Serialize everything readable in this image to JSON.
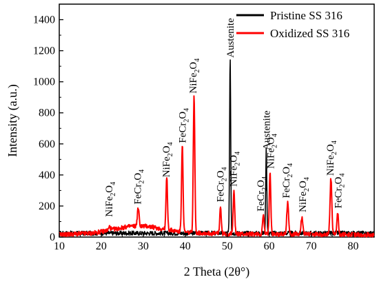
{
  "chart_data": {
    "type": "line",
    "xlabel": "2 Theta (2θ°)",
    "ylabel": "Intensity (a.u.)",
    "xlim": [
      10,
      85
    ],
    "ylim": [
      0,
      1500
    ],
    "x_ticks": [
      "10",
      "20",
      "30",
      "40",
      "50",
      "60",
      "70",
      "80"
    ],
    "y_ticks": [
      "0",
      "200",
      "400",
      "600",
      "800",
      "1000",
      "1200",
      "1400"
    ],
    "grid": false,
    "legend_position": "top-right",
    "series": [
      {
        "name": "Pristine SS 316",
        "color": "#000000",
        "baseline": 25,
        "peaks": [
          {
            "x": 50.7,
            "y": 1140,
            "w": 0.22
          },
          {
            "x": 59.3,
            "y": 545,
            "w": 0.22
          }
        ]
      },
      {
        "name": "Oxidized SS 316",
        "color": "#ff0000",
        "baseline": 15,
        "hump": [
          [
            10,
            15
          ],
          [
            18,
            25
          ],
          [
            24,
            55
          ],
          [
            27,
            70
          ],
          [
            31,
            70
          ],
          [
            34,
            55
          ],
          [
            40,
            30
          ],
          [
            50,
            20
          ],
          [
            85,
            15
          ]
        ],
        "peaks": [
          {
            "x": 22.0,
            "y": 22,
            "w": 0.35
          },
          {
            "x": 28.8,
            "y": 115,
            "w": 0.35
          },
          {
            "x": 35.6,
            "y": 335,
            "w": 0.3
          },
          {
            "x": 39.3,
            "y": 565,
            "w": 0.3
          },
          {
            "x": 42.1,
            "y": 885,
            "w": 0.3
          },
          {
            "x": 48.4,
            "y": 175,
            "w": 0.3
          },
          {
            "x": 51.6,
            "y": 290,
            "w": 0.3
          },
          {
            "x": 58.6,
            "y": 125,
            "w": 0.3
          },
          {
            "x": 60.2,
            "y": 410,
            "w": 0.3
          },
          {
            "x": 64.4,
            "y": 210,
            "w": 0.35
          },
          {
            "x": 67.8,
            "y": 110,
            "w": 0.4
          },
          {
            "x": 74.7,
            "y": 360,
            "w": 0.35
          },
          {
            "x": 76.3,
            "y": 140,
            "w": 0.3
          }
        ]
      }
    ],
    "annotations": [
      {
        "base": "NiFe",
        "sub": "2",
        "tail": "O",
        "sub2": "4",
        "x": 21.8,
        "y": 130,
        "rotate": -90
      },
      {
        "base": "FeCr",
        "sub": "2",
        "tail": "O",
        "sub2": "4",
        "x": 28.6,
        "y": 210,
        "rotate": -90
      },
      {
        "base": "NiFe",
        "sub": "2",
        "tail": "O",
        "sub2": "4",
        "x": 35.4,
        "y": 385,
        "rotate": -90
      },
      {
        "base": "FeCr",
        "sub": "2",
        "tail": "O",
        "sub2": "4",
        "x": 39.3,
        "y": 605,
        "rotate": -90
      },
      {
        "base": "NiFe",
        "sub": "2",
        "tail": "O",
        "sub2": "4",
        "x": 41.8,
        "y": 925,
        "rotate": -90
      },
      {
        "base": "FeCr",
        "sub": "2",
        "tail": "O",
        "sub2": "4",
        "x": 48.3,
        "y": 225,
        "rotate": -90
      },
      {
        "base": "Austenite",
        "sub": "",
        "tail": "",
        "sub2": "",
        "x": 50.7,
        "y": 1155,
        "rotate": -90
      },
      {
        "base": "NiFe",
        "sub": "2",
        "tail": "O",
        "sub2": "4",
        "x": 51.4,
        "y": 325,
        "rotate": -90
      },
      {
        "base": "FeCr",
        "sub": "2",
        "tail": "O",
        "sub2": "4",
        "x": 57.9,
        "y": 165,
        "rotate": -90
      },
      {
        "base": "Austenite",
        "sub": "",
        "tail": "",
        "sub2": "",
        "x": 59.3,
        "y": 560,
        "rotate": -90
      },
      {
        "base": "NiFe",
        "sub": "2",
        "tail": "O",
        "sub2": "4",
        "x": 60.3,
        "y": 440,
        "rotate": -90
      },
      {
        "base": "FeCr",
        "sub": "2",
        "tail": "O",
        "sub2": "4",
        "x": 64.0,
        "y": 250,
        "rotate": -90
      },
      {
        "base": "NiFe",
        "sub": "2",
        "tail": "O",
        "sub2": "4",
        "x": 67.9,
        "y": 160,
        "rotate": -90
      },
      {
        "base": "NiFe",
        "sub": "2",
        "tail": "O",
        "sub2": "4",
        "x": 74.5,
        "y": 395,
        "rotate": -90
      },
      {
        "base": "FeCr",
        "sub": "2",
        "tail": "O",
        "sub2": "4",
        "x": 76.4,
        "y": 185,
        "rotate": -90
      }
    ]
  }
}
